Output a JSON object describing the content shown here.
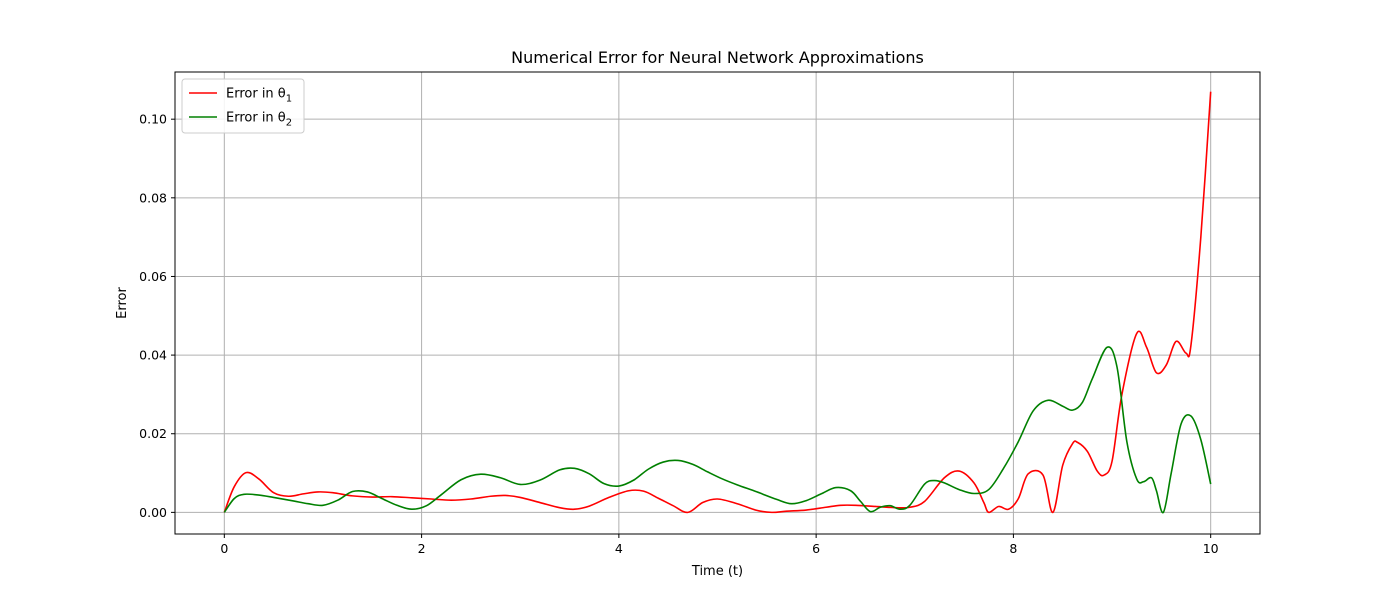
{
  "chart_data": {
    "type": "line",
    "title": "Numerical Error for Neural Network Approximations",
    "xlabel": "Time (t)",
    "ylabel": "Error",
    "xlim": [
      -0.5,
      10.5
    ],
    "ylim": [
      -0.0055,
      0.112
    ],
    "xticks": [
      0,
      2,
      4,
      6,
      8,
      10
    ],
    "xtick_labels": [
      "0",
      "2",
      "4",
      "6",
      "8",
      "10"
    ],
    "yticks": [
      0.0,
      0.02,
      0.04,
      0.06,
      0.08,
      0.1
    ],
    "ytick_labels": [
      "0.00",
      "0.02",
      "0.04",
      "0.06",
      "0.08",
      "0.10"
    ],
    "grid": true,
    "legend_position": "top-left",
    "series": [
      {
        "name": "Error in θ",
        "subscript": "1",
        "color": "#ff0000",
        "x": [
          0.0,
          0.1,
          0.22,
          0.35,
          0.5,
          0.65,
          0.8,
          0.95,
          1.1,
          1.3,
          1.5,
          1.7,
          1.9,
          2.1,
          2.3,
          2.5,
          2.7,
          2.85,
          3.0,
          3.2,
          3.4,
          3.55,
          3.7,
          3.9,
          4.1,
          4.25,
          4.4,
          4.55,
          4.7,
          4.85,
          5.0,
          5.2,
          5.4,
          5.55,
          5.7,
          5.9,
          6.1,
          6.25,
          6.4,
          6.6,
          6.8,
          6.95,
          7.1,
          7.3,
          7.45,
          7.6,
          7.7,
          7.75,
          7.85,
          7.95,
          8.05,
          8.15,
          8.3,
          8.4,
          8.5,
          8.6,
          8.65,
          8.75,
          8.85,
          8.92,
          9.0,
          9.1,
          9.25,
          9.35,
          9.45,
          9.55,
          9.65,
          9.75,
          9.8,
          9.9,
          10.0
        ],
        "y": [
          0.0,
          0.0065,
          0.0101,
          0.0085,
          0.005,
          0.0041,
          0.0047,
          0.0052,
          0.005,
          0.0042,
          0.0039,
          0.004,
          0.0037,
          0.0034,
          0.0031,
          0.0034,
          0.0041,
          0.0043,
          0.0038,
          0.0025,
          0.0012,
          0.0008,
          0.0016,
          0.0038,
          0.0055,
          0.0054,
          0.0036,
          0.0017,
          0.0,
          0.0025,
          0.0034,
          0.0022,
          0.0005,
          0.0,
          0.0003,
          0.0006,
          0.0013,
          0.0018,
          0.0018,
          0.0015,
          0.0012,
          0.0013,
          0.0028,
          0.0088,
          0.0105,
          0.0075,
          0.0025,
          0.0,
          0.0015,
          0.0008,
          0.0035,
          0.0098,
          0.0095,
          0.0,
          0.012,
          0.0175,
          0.0178,
          0.0155,
          0.0105,
          0.0095,
          0.013,
          0.03,
          0.0455,
          0.042,
          0.0355,
          0.0375,
          0.0435,
          0.0405,
          0.0425,
          0.07,
          0.107
        ]
      },
      {
        "name": "Error in θ",
        "subscript": "2",
        "color": "#008000",
        "x": [
          0.0,
          0.1,
          0.2,
          0.35,
          0.5,
          0.7,
          0.85,
          1.0,
          1.15,
          1.3,
          1.45,
          1.6,
          1.75,
          1.9,
          2.05,
          2.2,
          2.4,
          2.6,
          2.8,
          3.0,
          3.2,
          3.4,
          3.55,
          3.7,
          3.85,
          4.0,
          4.15,
          4.3,
          4.45,
          4.6,
          4.75,
          4.9,
          5.05,
          5.2,
          5.4,
          5.6,
          5.75,
          5.9,
          6.05,
          6.2,
          6.35,
          6.45,
          6.55,
          6.65,
          6.75,
          6.85,
          6.95,
          7.1,
          7.2,
          7.3,
          7.45,
          7.6,
          7.75,
          7.9,
          8.05,
          8.2,
          8.35,
          8.5,
          8.6,
          8.7,
          8.8,
          8.95,
          9.05,
          9.15,
          9.25,
          9.32,
          9.4,
          9.45,
          9.52,
          9.6,
          9.7,
          9.8,
          9.9,
          10.0
        ],
        "y": [
          0.0,
          0.0035,
          0.0046,
          0.0044,
          0.0038,
          0.0029,
          0.0022,
          0.0018,
          0.0031,
          0.0053,
          0.0052,
          0.0035,
          0.0018,
          0.0008,
          0.0017,
          0.0045,
          0.0083,
          0.0097,
          0.0088,
          0.0071,
          0.0082,
          0.0108,
          0.0112,
          0.0098,
          0.0073,
          0.0067,
          0.0082,
          0.011,
          0.0128,
          0.0132,
          0.0122,
          0.0103,
          0.0085,
          0.007,
          0.0052,
          0.0033,
          0.0022,
          0.003,
          0.0047,
          0.0063,
          0.0055,
          0.0028,
          0.0002,
          0.0013,
          0.0017,
          0.0008,
          0.0018,
          0.0072,
          0.0081,
          0.0075,
          0.0058,
          0.0048,
          0.0058,
          0.0112,
          0.018,
          0.0258,
          0.0285,
          0.027,
          0.026,
          0.028,
          0.034,
          0.042,
          0.037,
          0.018,
          0.0085,
          0.0078,
          0.0088,
          0.0055,
          0.0,
          0.01,
          0.0225,
          0.0245,
          0.0185,
          0.0072
        ]
      }
    ]
  }
}
